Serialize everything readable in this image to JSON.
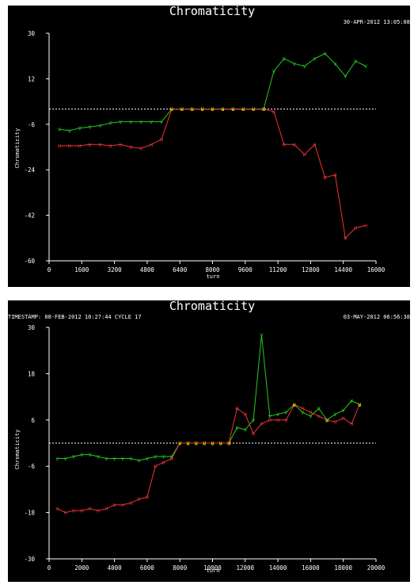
{
  "colors": {
    "background": "#000000",
    "foreground": "#ffffff",
    "series_v": "#22cc22",
    "series_h": "#ee3333",
    "overlap": "#e8d000"
  },
  "panels": [
    {
      "title": "Chromaticity",
      "timestamp_left": "",
      "timestamp_right": "30-APR-2012 13:05:08"
    },
    {
      "title": "Chromaticity",
      "timestamp_left": "TIMESTAMP: 08-FEB-2012 10:27:44  CYCLE 17",
      "timestamp_right": "03-MAY-2012 06:56:38"
    }
  ],
  "chart_data": [
    {
      "type": "line",
      "title": "Chromaticity",
      "xlabel": "turn",
      "ylabel": "Chromaticity",
      "xlim": [
        0,
        16000
      ],
      "ylim": [
        -60,
        30
      ],
      "xticks": [
        0,
        1600,
        3200,
        4800,
        6400,
        8000,
        9600,
        11200,
        12800,
        14400,
        16000
      ],
      "yticks": [
        -60,
        -42,
        -24,
        -6,
        12,
        30
      ],
      "reference_line": 0,
      "grid": false,
      "legend": "none",
      "series": [
        {
          "marker": "V",
          "color": "#22cc22",
          "points": [
            [
              500,
              -8
            ],
            [
              1000,
              -8.5
            ],
            [
              1500,
              -7.5
            ],
            [
              2000,
              -7
            ],
            [
              2500,
              -6.5
            ],
            [
              3000,
              -5.5
            ],
            [
              3500,
              -5
            ],
            [
              4000,
              -5
            ],
            [
              4500,
              -5
            ],
            [
              5000,
              -5
            ],
            [
              5500,
              -5
            ],
            [
              6000,
              0
            ],
            [
              6500,
              0
            ],
            [
              7000,
              0
            ],
            [
              7500,
              0
            ],
            [
              8000,
              0
            ],
            [
              8500,
              0
            ],
            [
              9000,
              0
            ],
            [
              9500,
              0
            ],
            [
              10000,
              0
            ],
            [
              10500,
              0
            ],
            [
              11000,
              15
            ],
            [
              11500,
              20
            ],
            [
              12000,
              18
            ],
            [
              12500,
              17
            ],
            [
              13000,
              20
            ],
            [
              13500,
              22
            ],
            [
              14000,
              18
            ],
            [
              14500,
              13
            ],
            [
              15000,
              19
            ],
            [
              15500,
              17
            ]
          ]
        },
        {
          "marker": "H",
          "color": "#ee3333",
          "points": [
            [
              500,
              -14.5
            ],
            [
              1000,
              -14.5
            ],
            [
              1500,
              -14.5
            ],
            [
              2000,
              -14
            ],
            [
              2500,
              -14
            ],
            [
              3000,
              -14.5
            ],
            [
              3500,
              -14
            ],
            [
              4000,
              -15
            ],
            [
              4500,
              -15.5
            ],
            [
              5000,
              -14
            ],
            [
              5500,
              -12
            ],
            [
              6000,
              0
            ],
            [
              6500,
              0
            ],
            [
              7000,
              0
            ],
            [
              7500,
              0
            ],
            [
              8000,
              0
            ],
            [
              8500,
              0
            ],
            [
              9000,
              0
            ],
            [
              9500,
              0
            ],
            [
              10000,
              0
            ],
            [
              10500,
              0
            ],
            [
              11000,
              -1
            ],
            [
              11500,
              -14
            ],
            [
              12000,
              -14
            ],
            [
              12500,
              -18
            ],
            [
              13000,
              -14
            ],
            [
              13500,
              -27
            ],
            [
              14000,
              -26
            ],
            [
              14500,
              -51
            ],
            [
              15000,
              -47
            ],
            [
              15500,
              -46
            ]
          ]
        }
      ]
    },
    {
      "type": "line",
      "title": "Chromaticity",
      "xlabel": "turn",
      "ylabel": "Chromaticity",
      "xlim": [
        0,
        20000
      ],
      "ylim": [
        -30,
        30
      ],
      "xticks": [
        0,
        2000,
        4000,
        6000,
        8000,
        10000,
        12000,
        14000,
        16000,
        18000,
        20000
      ],
      "yticks": [
        -30,
        -18,
        -6,
        6,
        18,
        30
      ],
      "reference_line": 0,
      "grid": false,
      "legend": "none",
      "series": [
        {
          "marker": "V",
          "color": "#22cc22",
          "points": [
            [
              500,
              -4
            ],
            [
              1000,
              -4
            ],
            [
              1500,
              -3.5
            ],
            [
              2000,
              -3
            ],
            [
              2500,
              -3
            ],
            [
              3000,
              -3.5
            ],
            [
              3500,
              -4
            ],
            [
              4000,
              -4
            ],
            [
              4500,
              -4
            ],
            [
              5000,
              -4
            ],
            [
              5500,
              -4.5
            ],
            [
              6000,
              -4
            ],
            [
              6500,
              -3.5
            ],
            [
              7000,
              -3.5
            ],
            [
              7500,
              -3.5
            ],
            [
              8000,
              0
            ],
            [
              8500,
              0
            ],
            [
              9000,
              0
            ],
            [
              9500,
              0
            ],
            [
              10000,
              0
            ],
            [
              10500,
              0
            ],
            [
              11000,
              0
            ],
            [
              11500,
              4
            ],
            [
              12000,
              3.5
            ],
            [
              12500,
              6
            ],
            [
              13000,
              28
            ],
            [
              13500,
              7
            ],
            [
              14000,
              7.5
            ],
            [
              14500,
              8
            ],
            [
              15000,
              10
            ],
            [
              15500,
              8
            ],
            [
              16000,
              7
            ],
            [
              16500,
              9
            ],
            [
              17000,
              6
            ],
            [
              17500,
              7.5
            ],
            [
              18000,
              8.5
            ],
            [
              18500,
              11
            ],
            [
              19000,
              10
            ]
          ]
        },
        {
          "marker": "H",
          "color": "#ee3333",
          "points": [
            [
              500,
              -17
            ],
            [
              1000,
              -18
            ],
            [
              1500,
              -17.5
            ],
            [
              2000,
              -17.5
            ],
            [
              2500,
              -17
            ],
            [
              3000,
              -17.5
            ],
            [
              3500,
              -17
            ],
            [
              4000,
              -16
            ],
            [
              4500,
              -16
            ],
            [
              5000,
              -15.5
            ],
            [
              5500,
              -14.5
            ],
            [
              6000,
              -14
            ],
            [
              6500,
              -6
            ],
            [
              7000,
              -5
            ],
            [
              7500,
              -4
            ],
            [
              8000,
              0
            ],
            [
              8500,
              0
            ],
            [
              9000,
              0
            ],
            [
              9500,
              0
            ],
            [
              10000,
              0
            ],
            [
              10500,
              0
            ],
            [
              11000,
              0
            ],
            [
              11500,
              9
            ],
            [
              12000,
              7.5
            ],
            [
              12500,
              2.5
            ],
            [
              13000,
              5
            ],
            [
              13500,
              6
            ],
            [
              14000,
              6
            ],
            [
              14500,
              6
            ],
            [
              15000,
              10
            ],
            [
              15500,
              9
            ],
            [
              16000,
              8
            ],
            [
              16500,
              7
            ],
            [
              17000,
              6
            ],
            [
              17500,
              5.5
            ],
            [
              18000,
              6.5
            ],
            [
              18500,
              5
            ],
            [
              19000,
              10
            ]
          ]
        }
      ]
    }
  ]
}
